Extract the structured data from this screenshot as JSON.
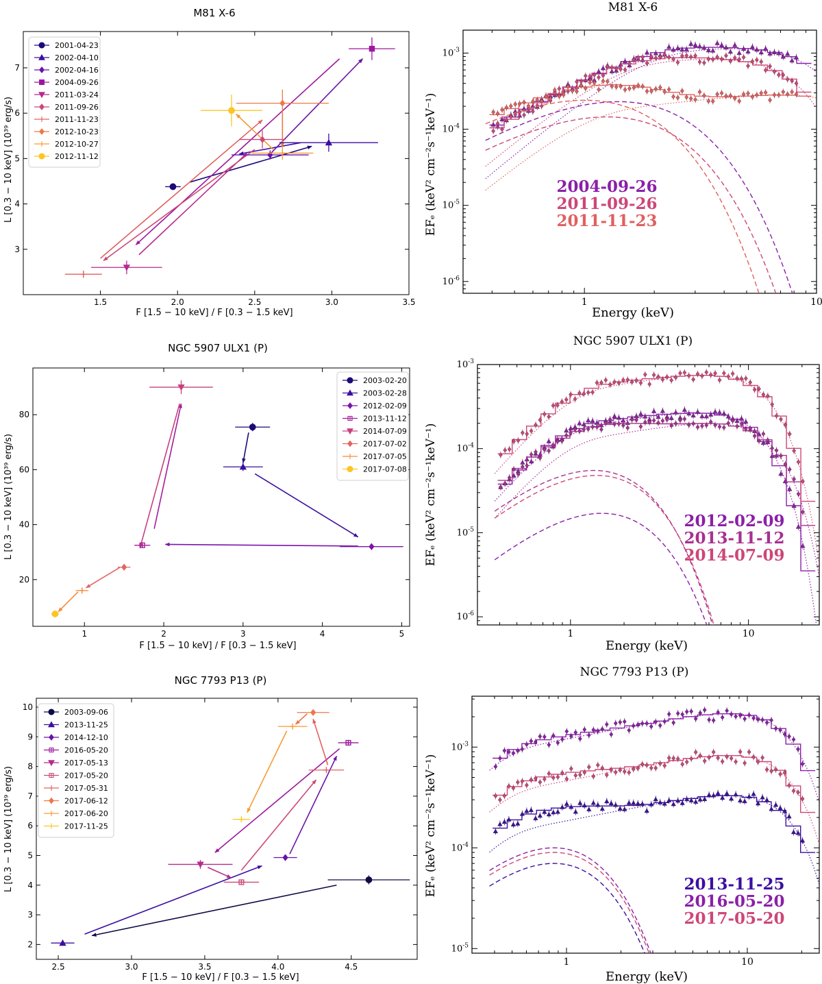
{
  "chart_data": [
    {
      "id": "m81_hr",
      "type": "scatter",
      "title": "M81 X-6",
      "xlabel": "F [1.5 − 10 keV] / F [0.3 − 1.5 keV]",
      "ylabel": "L [0.3 − 10 keV] (10³⁹ erg/s)",
      "xlim": [
        1.0,
        3.5
      ],
      "ylim": [
        2.0,
        7.8
      ],
      "xticks": [
        1.5,
        2.0,
        2.5,
        3.0,
        3.5
      ],
      "xtick_labels": [
        "1.5",
        "2.0",
        "2.5",
        "3.0",
        "3.5"
      ],
      "yticks": [
        3,
        4,
        5,
        6,
        7
      ],
      "ytick_labels": [
        "3",
        "4",
        "5",
        "6",
        "7"
      ],
      "legend_position": "top-left",
      "series": [
        {
          "name": "2001-04-23",
          "marker": "circle",
          "color": "#1a0a7a",
          "x": 1.97,
          "y": 4.38,
          "xerr": 0.05,
          "yerr": 0.0
        },
        {
          "name": "2002-04-10",
          "marker": "triangle-up",
          "color": "#3c0fa0",
          "x": 2.98,
          "y": 5.35,
          "xerr": 0.32,
          "yerr": 0.2
        },
        {
          "name": "2002-04-16",
          "marker": "diamond",
          "color": "#6a12a8",
          "x": 2.6,
          "y": 5.08,
          "xerr": 0.25,
          "yerr": 0.1
        },
        {
          "name": "2004-09-26",
          "marker": "square",
          "color": "#9c179e",
          "x": 3.26,
          "y": 7.42,
          "xerr": 0.15,
          "yerr": 0.25
        },
        {
          "name": "2011-03-24",
          "marker": "triangle-down",
          "color": "#b52a8e",
          "x": 1.67,
          "y": 2.6,
          "xerr": 0.23,
          "yerr": 0.15
        },
        {
          "name": "2011-09-26",
          "marker": "diamond",
          "color": "#cc4778",
          "x": 2.55,
          "y": 5.42,
          "xerr": 0.15,
          "yerr": 0.2
        },
        {
          "name": "2011-11-23",
          "marker": "plus",
          "color": "#e0605f",
          "x": 1.39,
          "y": 2.45,
          "xerr": 0.12,
          "yerr": 0.08
        },
        {
          "name": "2012-10-23",
          "marker": "diamond",
          "color": "#ee7848",
          "x": 2.68,
          "y": 6.22,
          "xerr": 0.3,
          "yerr": 0.3
        },
        {
          "name": "2012-10-27",
          "marker": "plus",
          "color": "#f79a34",
          "x": 2.68,
          "y": 5.12,
          "xerr": 0.2,
          "yerr": 0.15
        },
        {
          "name": "2012-11-12",
          "marker": "circle",
          "color": "#fcc524",
          "x": 2.35,
          "y": 6.06,
          "xerr": 0.2,
          "yerr": 0.35
        }
      ],
      "arrows": [
        {
          "from": [
            2.08,
            4.48
          ],
          "to": [
            2.87,
            5.27
          ],
          "color": "#1a0a7a"
        },
        {
          "from": [
            2.8,
            5.35
          ],
          "to": [
            2.4,
            5.1
          ],
          "color": "#3c0fa0"
        },
        {
          "from": [
            2.6,
            5.1
          ],
          "to": [
            3.2,
            7.2
          ],
          "color": "#6a12a8"
        },
        {
          "from": [
            3.05,
            7.2
          ],
          "to": [
            1.73,
            3.1
          ],
          "color": "#9c179e"
        },
        {
          "from": [
            1.75,
            2.88
          ],
          "to": [
            2.45,
            5.12
          ],
          "color": "#b52a8e"
        },
        {
          "from": [
            2.5,
            5.2
          ],
          "to": [
            1.52,
            2.75
          ],
          "color": "#cc4778"
        },
        {
          "from": [
            1.5,
            2.8
          ],
          "to": [
            2.55,
            5.85
          ],
          "color": "#e0605f"
        },
        {
          "from": [
            2.68,
            6.0
          ],
          "to": [
            2.68,
            5.25
          ],
          "color": "#ee7848"
        },
        {
          "from": [
            2.62,
            5.2
          ],
          "to": [
            2.38,
            5.98
          ],
          "color": "#f79a34"
        }
      ]
    },
    {
      "id": "m81_spec",
      "type": "line",
      "title": "M81 X-6",
      "xlabel": "Energy (keV)",
      "ylabel": "EFₑ (keV² cm⁻²s⁻¹keV⁻¹)",
      "xscale": "log",
      "yscale": "log",
      "xlim": [
        0.3,
        10
      ],
      "ylim": [
        7e-07,
        0.002
      ],
      "xticks": [
        1,
        10
      ],
      "xtick_labels": [
        "1",
        "10"
      ],
      "yticks": [
        1e-06,
        1e-05,
        0.0001,
        0.001
      ],
      "ytick_exponents": [
        "-6",
        "-5",
        "-4",
        "-3"
      ],
      "legend_labels": [
        "2004-09-26",
        "2011-09-26",
        "2011-11-23"
      ],
      "legend_position": "lower-left",
      "series": [
        {
          "name": "2004-09-26",
          "color": "#8b1fa8",
          "model": {
            "disk_peak": 0.00023,
            "disk_e": 1.4,
            "disk_cut": 1.6,
            "pl_norm": 0.00138,
            "pl_cut": 5.0
          }
        },
        {
          "name": "2011-09-26",
          "color": "#cc4778",
          "model": {
            "disk_peak": 0.000145,
            "disk_e": 1.25,
            "disk_cut": 1.2,
            "pl_norm": 0.001,
            "pl_cut": 4.0
          }
        },
        {
          "name": "2011-11-23",
          "color": "#e0605f",
          "model": {
            "disk_peak": 0.00024,
            "disk_e": 1.0,
            "disk_cut": 0.9,
            "pl_norm": 0.00034,
            "pl_cut": 8.0
          }
        }
      ]
    },
    {
      "id": "ngc5907_hr",
      "type": "scatter",
      "title": "NGC 5907 ULX1 (P)",
      "xlabel": "F [1.5 − 10 keV] / F [0.3 − 1.5 keV]",
      "ylabel": "L [0.3 − 10 keV] (10³⁹ erg/s)",
      "xlim": [
        0.35,
        5.1
      ],
      "ylim": [
        3,
        97
      ],
      "xticks": [
        1,
        2,
        3,
        4,
        5
      ],
      "xtick_labels": [
        "1",
        "2",
        "3",
        "4",
        "5"
      ],
      "yticks": [
        20,
        40,
        60,
        80
      ],
      "ytick_labels": [
        "20",
        "40",
        "60",
        "80"
      ],
      "legend_position": "top-right",
      "series": [
        {
          "name": "2003-02-20",
          "marker": "circle",
          "color": "#1a0a7a",
          "x": 3.12,
          "y": 75.5,
          "xerr": 0.22,
          "yerr": 1.5
        },
        {
          "name": "2003-02-28",
          "marker": "triangle-up",
          "color": "#3c0fa0",
          "x": 3.0,
          "y": 61.0,
          "xerr": 0.25,
          "yerr": 1.5
        },
        {
          "name": "2012-02-09",
          "marker": "diamond",
          "color": "#7b14a8",
          "x": 4.62,
          "y": 32.0,
          "xerr": 0.4,
          "yerr": 1.0
        },
        {
          "name": "2013-11-12",
          "marker": "square-plus",
          "color": "#a41c9a",
          "x": 1.73,
          "y": 32.5,
          "xerr": 0.1,
          "yerr": 0.7
        },
        {
          "name": "2014-07-09",
          "marker": "triangle-down",
          "color": "#c83e7f",
          "x": 2.22,
          "y": 90.0,
          "xerr": 0.4,
          "yerr": 2.5
        },
        {
          "name": "2017-07-02",
          "marker": "diamond",
          "color": "#e26560",
          "x": 1.5,
          "y": 24.5,
          "xerr": 0.08,
          "yerr": 0.4
        },
        {
          "name": "2017-07-05",
          "marker": "plus",
          "color": "#f5893a",
          "x": 0.97,
          "y": 16.0,
          "xerr": 0.08,
          "yerr": 0.4
        },
        {
          "name": "2017-07-08",
          "marker": "circle",
          "color": "#fcc524",
          "x": 0.63,
          "y": 7.5,
          "xerr": 0.05,
          "yerr": 0.4
        }
      ],
      "arrows": [
        {
          "from": [
            3.07,
            73.5
          ],
          "to": [
            3.0,
            62.5
          ],
          "color": "#1a0a7a"
        },
        {
          "from": [
            3.15,
            58.5
          ],
          "to": [
            4.45,
            35.5
          ],
          "color": "#3c0fa0"
        },
        {
          "from": [
            4.45,
            32.2
          ],
          "to": [
            2.02,
            32.8
          ],
          "color": "#7b14a8"
        },
        {
          "from": [
            1.88,
            38.5
          ],
          "to": [
            2.22,
            84.0
          ],
          "color": "#a41c9a"
        },
        {
          "from": [
            2.2,
            84.0
          ],
          "to": [
            1.7,
            31.5
          ],
          "color": "#c83e7f"
        },
        {
          "from": [
            1.45,
            24.5
          ],
          "to": [
            1.02,
            17.0
          ],
          "color": "#e26560"
        },
        {
          "from": [
            0.92,
            15.5
          ],
          "to": [
            0.67,
            8.3
          ],
          "color": "#f5893a"
        }
      ]
    },
    {
      "id": "ngc5907_spec",
      "type": "line",
      "title": "NGC 5907 ULX1 (P)",
      "xlabel": "Energy (keV)",
      "ylabel": "EFₑ (keV² cm⁻²s⁻¹keV⁻¹)",
      "xscale": "log",
      "yscale": "log",
      "xlim": [
        0.3,
        25
      ],
      "ylim": [
        8e-07,
        0.001
      ],
      "xticks": [
        1,
        10
      ],
      "xtick_labels": [
        "1",
        "10"
      ],
      "yticks": [
        1e-06,
        1e-05,
        0.0001,
        0.001
      ],
      "ytick_exponents": [
        "-6",
        "-5",
        "-4",
        "-3"
      ],
      "legend_labels": [
        "2012-02-09",
        "2013-11-12",
        "2014-07-09"
      ],
      "legend_position": "lower-right",
      "series": [
        {
          "name": "2012-02-09",
          "color": "#8b1fa8",
          "model": {
            "disk_peak": 1.7e-05,
            "disk_e": 1.5,
            "disk_cut": 0.75,
            "pl_norm": 0.00032,
            "pl_cut": 6.0
          }
        },
        {
          "name": "2013-11-12",
          "color": "#a83090",
          "model": {
            "disk_peak": 5.5e-05,
            "disk_e": 1.35,
            "disk_cut": 0.8,
            "pl_norm": 0.00024,
            "pl_cut": 7.0
          }
        },
        {
          "name": "2014-07-09",
          "color": "#cc4778",
          "model": {
            "disk_peak": 4.8e-05,
            "disk_e": 1.4,
            "disk_cut": 0.85,
            "pl_norm": 0.0009,
            "pl_cut": 6.5
          }
        }
      ]
    },
    {
      "id": "ngc7793_hr",
      "type": "scatter",
      "title": "NGC 7793 P13 (P)",
      "xlabel": "F [1.5 − 10 keV] / F [0.3 − 1.5 keV]",
      "ylabel": "L [0.3 − 10 keV] (10³⁹ erg/s)",
      "xlim": [
        2.35,
        4.95
      ],
      "ylim": [
        1.5,
        10.3
      ],
      "xticks": [
        2.5,
        3.0,
        3.5,
        4.0,
        4.5
      ],
      "xtick_labels": [
        "2.5",
        "3.0",
        "3.5",
        "4.0",
        "4.5"
      ],
      "yticks": [
        2,
        3,
        4,
        5,
        6,
        7,
        8,
        9,
        10
      ],
      "ytick_labels": [
        "2",
        "3",
        "4",
        "5",
        "6",
        "7",
        "8",
        "9",
        "10"
      ],
      "legend_position": "top-left",
      "series": [
        {
          "name": "2003-09-06",
          "marker": "circle",
          "color": "#0d0a45",
          "x": 4.62,
          "y": 4.18,
          "xerr": 0.28,
          "yerr": 0.15
        },
        {
          "name": "2013-11-25",
          "marker": "triangle-up",
          "color": "#3c0fa0",
          "x": 2.53,
          "y": 2.05,
          "xerr": 0.08,
          "yerr": 0.0
        },
        {
          "name": "2014-12-10",
          "marker": "diamond",
          "color": "#6a12a8",
          "x": 4.05,
          "y": 4.93,
          "xerr": 0.08,
          "yerr": 0.0
        },
        {
          "name": "2016-05-20",
          "marker": "square-plus",
          "color": "#9c179e",
          "x": 4.48,
          "y": 8.8,
          "xerr": 0.07,
          "yerr": 0.0
        },
        {
          "name": "2017-05-13",
          "marker": "triangle-down",
          "color": "#b52a8e",
          "x": 3.47,
          "y": 4.7,
          "xerr": 0.22,
          "yerr": 0.15
        },
        {
          "name": "2017-05-20",
          "marker": "square-plus",
          "color": "#cc4778",
          "x": 3.75,
          "y": 4.1,
          "xerr": 0.12,
          "yerr": 0.0
        },
        {
          "name": "2017-05-31",
          "marker": "plus",
          "color": "#e0605f",
          "x": 4.33,
          "y": 7.88,
          "xerr": 0.12,
          "yerr": 0.0
        },
        {
          "name": "2017-06-12",
          "marker": "diamond",
          "color": "#ee7848",
          "x": 4.24,
          "y": 9.82,
          "xerr": 0.11,
          "yerr": 0.0
        },
        {
          "name": "2017-06-20",
          "marker": "plus",
          "color": "#f79a34",
          "x": 4.1,
          "y": 9.35,
          "xerr": 0.1,
          "yerr": 0.0
        },
        {
          "name": "2017-11-25",
          "marker": "plus",
          "color": "#fcc524",
          "x": 3.75,
          "y": 6.22,
          "xerr": 0.06,
          "yerr": 0.0
        }
      ],
      "arrows": [
        {
          "from": [
            4.4,
            4.0
          ],
          "to": [
            2.73,
            2.3
          ],
          "color": "#0d0a45"
        },
        {
          "from": [
            2.68,
            2.35
          ],
          "to": [
            3.89,
            4.65
          ],
          "color": "#3c0fa0"
        },
        {
          "from": [
            4.08,
            5.05
          ],
          "to": [
            4.4,
            8.35
          ],
          "color": "#6a12a8"
        },
        {
          "from": [
            4.42,
            8.6
          ],
          "to": [
            3.57,
            5.1
          ],
          "color": "#9c179e"
        },
        {
          "from": [
            3.52,
            4.6
          ],
          "to": [
            3.68,
            4.25
          ],
          "color": "#b52a8e"
        },
        {
          "from": [
            3.75,
            4.5
          ],
          "to": [
            4.26,
            7.55
          ],
          "color": "#cc4778"
        },
        {
          "from": [
            4.34,
            8.05
          ],
          "to": [
            4.24,
            9.6
          ],
          "color": "#e0605f"
        },
        {
          "from": [
            4.2,
            9.78
          ],
          "to": [
            4.12,
            9.42
          ],
          "color": "#ee7848"
        },
        {
          "from": [
            4.06,
            9.2
          ],
          "to": [
            3.79,
            6.45
          ],
          "color": "#f79a34"
        }
      ]
    },
    {
      "id": "ngc7793_spec",
      "type": "line",
      "title": "NGC 7793 P13 (P)",
      "xlabel": "Energy (keV)",
      "ylabel": "EFₑ (keV² cm⁻²s⁻¹keV⁻¹)",
      "xscale": "log",
      "yscale": "log",
      "xlim": [
        0.3,
        25
      ],
      "ylim": [
        9e-06,
        0.0032
      ],
      "xticks": [
        1,
        10
      ],
      "xtick_labels": [
        "1",
        "10"
      ],
      "yticks": [
        1e-05,
        0.0001,
        0.001
      ],
      "ytick_exponents": [
        "-5",
        "-4",
        "-3"
      ],
      "legend_labels": [
        "2013-11-25",
        "2016-05-20",
        "2017-05-20"
      ],
      "legend_position": "lower-right",
      "series": [
        {
          "name": "2013-11-25",
          "color": "#3c0fa0",
          "model": {
            "disk_peak": 7e-05,
            "disk_e": 0.85,
            "disk_cut": 0.35,
            "pl_norm": 0.0004,
            "pl_cut": 9.0
          }
        },
        {
          "name": "2016-05-20",
          "color": "#8b1fa8",
          "model": {
            "disk_peak": 0.0001,
            "disk_e": 0.85,
            "disk_cut": 0.35,
            "pl_norm": 0.0026,
            "pl_cut": 9.0
          }
        },
        {
          "name": "2017-05-20",
          "color": "#cc4778",
          "model": {
            "disk_peak": 9e-05,
            "disk_e": 0.85,
            "disk_cut": 0.35,
            "pl_norm": 0.001,
            "pl_cut": 9.0
          }
        }
      ]
    }
  ]
}
